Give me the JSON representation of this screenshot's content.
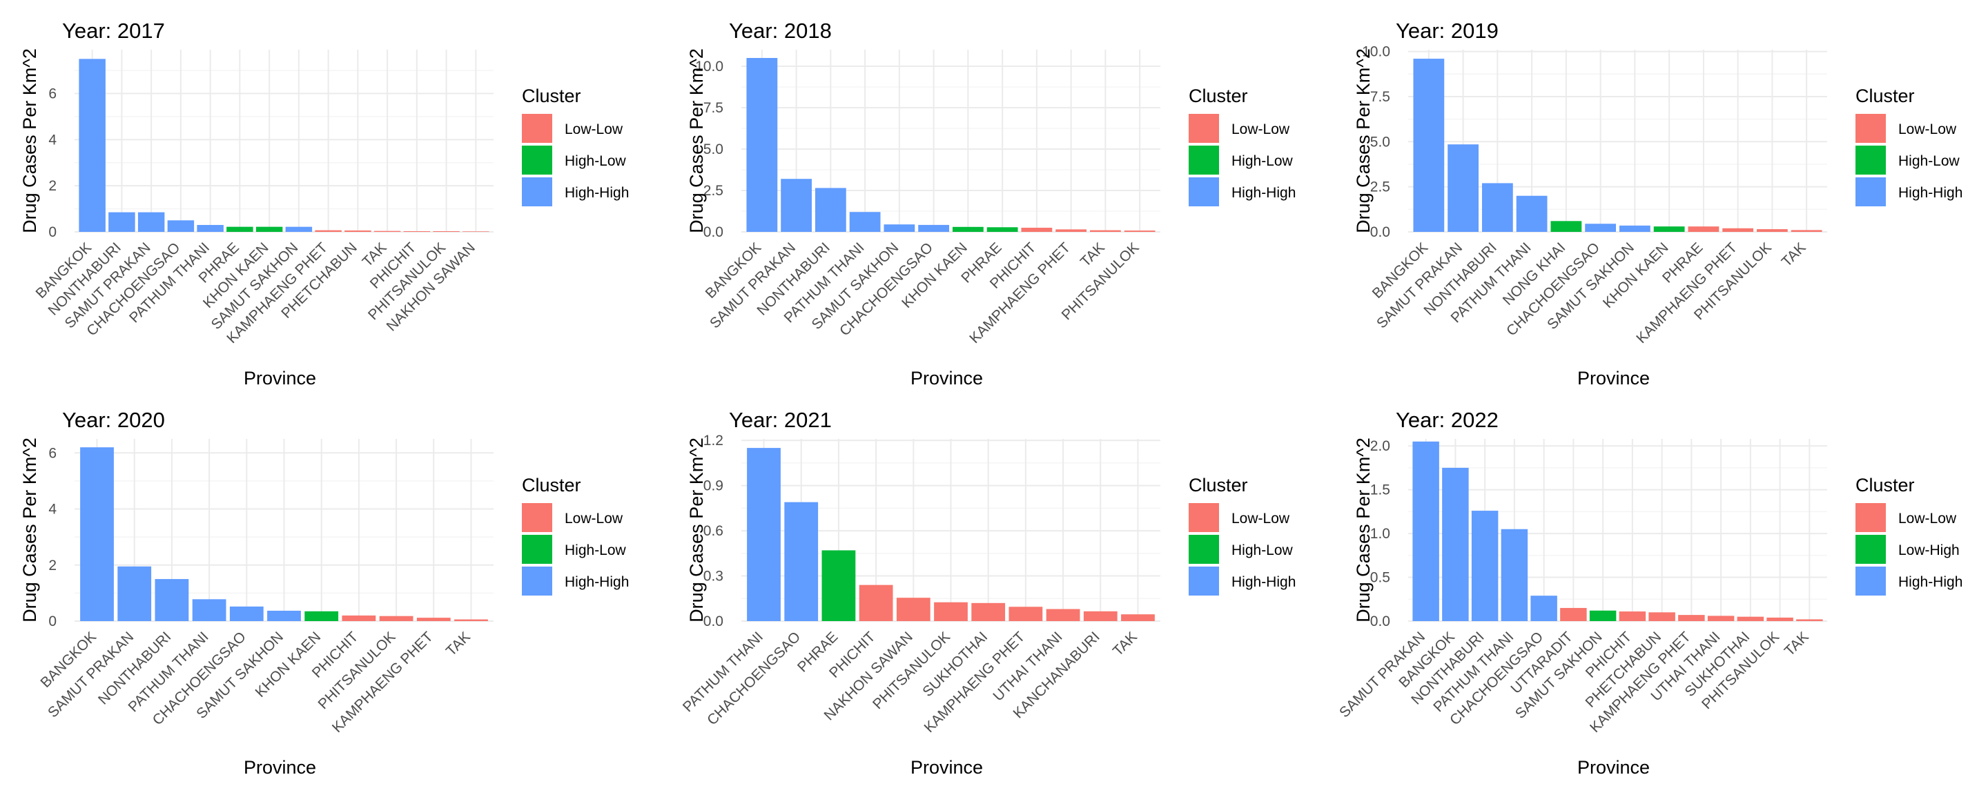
{
  "colors": {
    "Low-Low": "#F8766D",
    "High-Low": "#00BA38",
    "Low-High": "#00BA38",
    "High-High": "#619CFF",
    "grid_major": "#EBEBEB",
    "grid_minor": "#F5F5F5",
    "text": "#000000",
    "tick_text": "#4D4D4D"
  },
  "chart_data": [
    {
      "type": "bar",
      "title": "Year: 2017",
      "xlabel": "Province",
      "ylabel": "Drug Cases Per Km^2",
      "ylim": [
        0,
        7.9
      ],
      "yticks": [
        0,
        2,
        4,
        6
      ],
      "ytick_labels": [
        "0",
        "2",
        "4",
        "6"
      ],
      "grid": true,
      "legend": {
        "title": "Cluster",
        "entries": [
          "Low-Low",
          "High-Low",
          "High-High"
        ],
        "placement": "right"
      },
      "categories": [
        "BANGKOK",
        "NONTHABURI",
        "SAMUT PRAKAN",
        "CHACHOENGSAO",
        "PATHUM THANI",
        "PHRAE",
        "KHON KAEN",
        "SAMUT SAKHON",
        "KAMPHAENG PHET",
        "PHETCHABUN",
        "TAK",
        "PHICHIT",
        "PHITSANULOK",
        "NAKHON SAWAN"
      ],
      "values": [
        7.5,
        0.85,
        0.85,
        0.5,
        0.3,
        0.22,
        0.22,
        0.22,
        0.07,
        0.06,
        0.04,
        0.03,
        0.03,
        0.02
      ],
      "clusters": [
        "High-High",
        "High-High",
        "High-High",
        "High-High",
        "High-High",
        "High-Low",
        "High-Low",
        "High-High",
        "Low-Low",
        "Low-Low",
        "Low-Low",
        "Low-Low",
        "Low-Low",
        "Low-Low"
      ]
    },
    {
      "type": "bar",
      "title": "Year: 2018",
      "xlabel": "Province",
      "ylabel": "Drug Cases Per Km^2",
      "ylim": [
        0,
        11.0
      ],
      "yticks": [
        0,
        2.5,
        5,
        7.5,
        10
      ],
      "ytick_labels": [
        "0.0",
        "2.5",
        "5.0",
        "7.5",
        "10.0"
      ],
      "grid": true,
      "legend": {
        "title": "Cluster",
        "entries": [
          "Low-Low",
          "High-Low",
          "High-High"
        ],
        "placement": "right"
      },
      "categories": [
        "BANGKOK",
        "SAMUT PRAKAN",
        "NONTHABURI",
        "PATHUM THANI",
        "SAMUT SAKHON",
        "CHACHOENGSAO",
        "KHON KAEN",
        "PHRAE",
        "PHICHIT",
        "KAMPHAENG PHET",
        "TAK",
        "PHITSANULOK"
      ],
      "values": [
        10.5,
        3.2,
        2.65,
        1.2,
        0.45,
        0.42,
        0.3,
        0.28,
        0.25,
        0.15,
        0.1,
        0.08
      ],
      "clusters": [
        "High-High",
        "High-High",
        "High-High",
        "High-High",
        "High-High",
        "High-High",
        "High-Low",
        "High-Low",
        "Low-Low",
        "Low-Low",
        "Low-Low",
        "Low-Low"
      ]
    },
    {
      "type": "bar",
      "title": "Year: 2019",
      "xlabel": "Province",
      "ylabel": "Drug Cases Per Km^2",
      "ylim": [
        0,
        10.1
      ],
      "yticks": [
        0,
        2.5,
        5,
        7.5,
        10
      ],
      "ytick_labels": [
        "0.0",
        "2.5",
        "5.0",
        "7.5",
        "10.0"
      ],
      "grid": true,
      "legend": {
        "title": "Cluster",
        "entries": [
          "Low-Low",
          "High-Low",
          "High-High"
        ],
        "placement": "right"
      },
      "categories": [
        "BANGKOK",
        "SAMUT PRAKAN",
        "NONTHABURI",
        "PATHUM THANI",
        "NONG KHAI",
        "CHACHOENGSAO",
        "SAMUT SAKHON",
        "KHON KAEN",
        "PHRAE",
        "KAMPHAENG PHET",
        "PHITSANULOK",
        "TAK"
      ],
      "values": [
        9.6,
        4.85,
        2.7,
        2.0,
        0.6,
        0.45,
        0.35,
        0.3,
        0.3,
        0.2,
        0.15,
        0.1
      ],
      "clusters": [
        "High-High",
        "High-High",
        "High-High",
        "High-High",
        "High-Low",
        "High-High",
        "High-High",
        "High-Low",
        "Low-Low",
        "Low-Low",
        "Low-Low",
        "Low-Low"
      ]
    },
    {
      "type": "bar",
      "title": "Year: 2020",
      "xlabel": "Province",
      "ylabel": "Drug Cases Per Km^2",
      "ylim": [
        0,
        6.5
      ],
      "yticks": [
        0,
        2,
        4,
        6
      ],
      "ytick_labels": [
        "0",
        "2",
        "4",
        "6"
      ],
      "grid": true,
      "legend": {
        "title": "Cluster",
        "entries": [
          "Low-Low",
          "High-Low",
          "High-High"
        ],
        "placement": "right"
      },
      "categories": [
        "BANGKOK",
        "SAMUT PRAKAN",
        "NONTHABURI",
        "PATHUM THANI",
        "CHACHOENGSAO",
        "SAMUT SAKHON",
        "KHON KAEN",
        "PHICHIT",
        "PHITSANULOK",
        "KAMPHAENG PHET",
        "TAK"
      ],
      "values": [
        6.2,
        1.95,
        1.5,
        0.78,
        0.52,
        0.37,
        0.35,
        0.2,
        0.18,
        0.12,
        0.06
      ],
      "clusters": [
        "High-High",
        "High-High",
        "High-High",
        "High-High",
        "High-High",
        "High-High",
        "High-Low",
        "Low-Low",
        "Low-Low",
        "Low-Low",
        "Low-Low"
      ]
    },
    {
      "type": "bar",
      "title": "Year: 2021",
      "xlabel": "Province",
      "ylabel": "Drug Cases Per Km^2",
      "ylim": [
        0,
        1.21
      ],
      "yticks": [
        0,
        0.3,
        0.6,
        0.9,
        1.2
      ],
      "ytick_labels": [
        "0.0",
        "0.3",
        "0.6",
        "0.9",
        "1.2"
      ],
      "grid": true,
      "legend": {
        "title": "Cluster",
        "entries": [
          "Low-Low",
          "High-Low",
          "High-High"
        ],
        "placement": "right"
      },
      "categories": [
        "PATHUM THANI",
        "CHACHOENGSAO",
        "PHRAE",
        "PHICHIT",
        "NAKHON SAWAN",
        "PHITSANULOK",
        "SUKHOTHAI",
        "KAMPHAENG PHET",
        "UTHAI THANI",
        "KANCHANABURI",
        "TAK"
      ],
      "values": [
        1.15,
        0.79,
        0.47,
        0.24,
        0.155,
        0.125,
        0.12,
        0.095,
        0.08,
        0.065,
        0.045
      ],
      "clusters": [
        "High-High",
        "High-High",
        "High-Low",
        "Low-Low",
        "Low-Low",
        "Low-Low",
        "Low-Low",
        "Low-Low",
        "Low-Low",
        "Low-Low",
        "Low-Low"
      ]
    },
    {
      "type": "bar",
      "title": "Year: 2022",
      "xlabel": "Province",
      "ylabel": "Drug Cases Per Km^2",
      "ylim": [
        0,
        2.08
      ],
      "yticks": [
        0,
        0.5,
        1,
        1.5,
        2
      ],
      "ytick_labels": [
        "0.0",
        "0.5",
        "1.0",
        "1.5",
        "2.0"
      ],
      "grid": true,
      "legend": {
        "title": "Cluster",
        "entries": [
          "Low-Low",
          "Low-High",
          "High-High"
        ],
        "placement": "right"
      },
      "categories": [
        "SAMUT PRAKAN",
        "BANGKOK",
        "NONTHABURI",
        "PATHUM THANI",
        "CHACHOENGSAO",
        "UTTARADIT",
        "SAMUT SAKHON",
        "PHICHIT",
        "PHETCHABUN",
        "KAMPHAENG PHET",
        "UTHAI THANI",
        "SUKHOTHAI",
        "PHITSANULOK",
        "TAK"
      ],
      "values": [
        2.05,
        1.75,
        1.26,
        1.05,
        0.29,
        0.15,
        0.12,
        0.11,
        0.1,
        0.07,
        0.06,
        0.05,
        0.04,
        0.02
      ],
      "clusters": [
        "High-High",
        "High-High",
        "High-High",
        "High-High",
        "High-High",
        "Low-Low",
        "Low-High",
        "Low-Low",
        "Low-Low",
        "Low-Low",
        "Low-Low",
        "Low-Low",
        "Low-Low",
        "Low-Low"
      ]
    }
  ]
}
